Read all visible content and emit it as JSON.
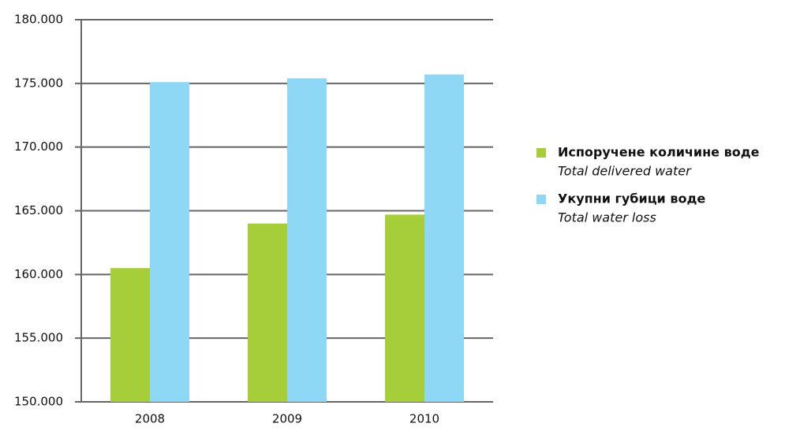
{
  "chart_data": {
    "type": "bar",
    "categories": [
      "2008",
      "2009",
      "2010"
    ],
    "series": [
      {
        "name": "Испоручене количине воде",
        "subtitle": "Total delivered water",
        "color": "#a6ce39",
        "values": [
          160500,
          164000,
          164700
        ]
      },
      {
        "name": "Укупни губици воде",
        "subtitle": "Total water loss",
        "color": "#8fd8f5",
        "values": [
          175100,
          175400,
          175700
        ]
      }
    ],
    "ylim": [
      150000,
      180000
    ],
    "yticks": [
      {
        "value": 150000,
        "label": "150.000"
      },
      {
        "value": 155000,
        "label": "155.000"
      },
      {
        "value": 160000,
        "label": "160.000"
      },
      {
        "value": 165000,
        "label": "165.000"
      },
      {
        "value": 170000,
        "label": "170.000"
      },
      {
        "value": 175000,
        "label": "175.000"
      },
      {
        "value": 180000,
        "label": "180.000"
      }
    ],
    "grid": true,
    "legend": "right"
  }
}
